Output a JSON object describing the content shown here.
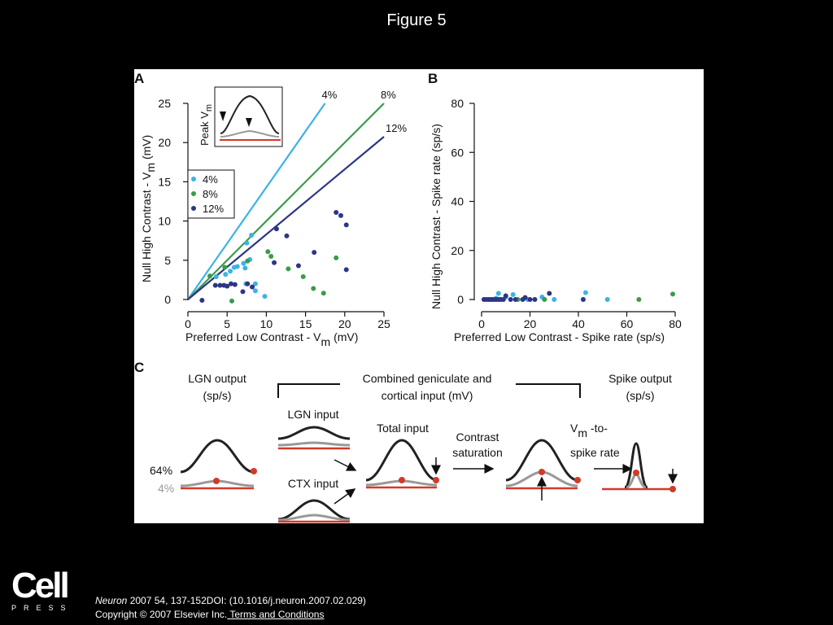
{
  "figure_title": "Figure 5",
  "logo": {
    "main": "Cell",
    "sub": "PRESS"
  },
  "citation": {
    "journal": "Neuron",
    "rest": " 2007 54, 137-152DOI: (10.1016/j.neuron.2007.02.029)"
  },
  "copyright": {
    "text": "Copyright © 2007 Elsevier Inc.",
    "link": " Terms and Conditions"
  },
  "colors": {
    "c4": "#3ab3e6",
    "c8": "#3a9b4a",
    "c12": "#2d3586",
    "red": "#d23a2a",
    "gray": "#999999",
    "dark": "#222222"
  },
  "panel_c": {
    "label": "C",
    "lgn_output": [
      "LGN output",
      "(sp/s)"
    ],
    "combined": [
      "Combined geniculate and",
      "cortical input (mV)"
    ],
    "spike_output": [
      "Spike output",
      "(sp/s)"
    ],
    "lgn_input": "LGN input",
    "ctx_input": "CTX input",
    "total_input": "Total input",
    "contrast_saturation": [
      "Contrast",
      "saturation"
    ],
    "vm_main": "V",
    "vm_sub": "m",
    "vm_tail": " -to-",
    "spike_rate": "spike rate",
    "pct_high": "64%",
    "pct_low": "4%"
  },
  "chart_data": [
    {
      "panel": "A",
      "type": "scatter",
      "xlabel": "Preferred Low Contrast - V",
      "xlabel_sub": "m",
      "xlabel_tail": " (mV)",
      "ylabel": "Null High Contrast - V",
      "ylabel_sub": "m",
      "ylabel_tail": " (mV)",
      "xlim": [
        0,
        25
      ],
      "ylim": [
        0,
        25
      ],
      "xticks": [
        0,
        5,
        10,
        15,
        20,
        25
      ],
      "yticks": [
        0,
        5,
        10,
        15,
        20,
        25
      ],
      "lines": [
        {
          "name": "4%",
          "slope": 1.43
        },
        {
          "name": "8%",
          "slope": 1.0
        },
        {
          "name": "12%",
          "slope": 0.83
        }
      ],
      "legend": {
        "position": "top-left",
        "entries": [
          "4%",
          "8%",
          "12%"
        ]
      },
      "inset": {
        "ylabel": "Peak V",
        "ylabel_sub": "m"
      },
      "series": [
        {
          "name": "4%",
          "points": [
            [
              3.6,
              2.9
            ],
            [
              4.8,
              3.2
            ],
            [
              5.4,
              3.6
            ],
            [
              5.9,
              4.1
            ],
            [
              6.3,
              4.2
            ],
            [
              7.1,
              4.6
            ],
            [
              7.5,
              7.2
            ],
            [
              8.1,
              8.2
            ],
            [
              7.4,
              2.0
            ],
            [
              8.6,
              2.0
            ],
            [
              8.6,
              1.1
            ],
            [
              9.8,
              0.4
            ],
            [
              7.9,
              5.1
            ],
            [
              7.3,
              4.0
            ]
          ]
        },
        {
          "name": "8%",
          "points": [
            [
              2.8,
              3.0
            ],
            [
              4.7,
              4.1
            ],
            [
              5.6,
              -0.2
            ],
            [
              7.6,
              4.9
            ],
            [
              10.2,
              6.1
            ],
            [
              10.6,
              5.5
            ],
            [
              12.8,
              3.9
            ],
            [
              14.7,
              2.9
            ],
            [
              16.0,
              1.4
            ],
            [
              17.3,
              0.8
            ],
            [
              18.9,
              5.3
            ]
          ]
        },
        {
          "name": "12%",
          "points": [
            [
              1.8,
              -0.1
            ],
            [
              3.5,
              1.8
            ],
            [
              4.1,
              1.8
            ],
            [
              4.6,
              1.8
            ],
            [
              5.0,
              1.7
            ],
            [
              5.5,
              2.0
            ],
            [
              6.0,
              1.9
            ],
            [
              7.0,
              1.0
            ],
            [
              7.6,
              2.0
            ],
            [
              8.2,
              1.6
            ],
            [
              11.3,
              9.0
            ],
            [
              12.6,
              8.1
            ],
            [
              14.1,
              4.3
            ],
            [
              16.1,
              6.0
            ],
            [
              18.9,
              11.1
            ],
            [
              19.5,
              10.7
            ],
            [
              20.2,
              9.5
            ],
            [
              20.2,
              3.8
            ],
            [
              11.0,
              4.7
            ]
          ]
        }
      ]
    },
    {
      "panel": "B",
      "type": "scatter",
      "xlabel": "Preferred Low Contrast - Spike rate (sp/s)",
      "ylabel": "Null High Contrast - Spike rate (sp/s)",
      "xlim": [
        0,
        80
      ],
      "ylim": [
        0,
        80
      ],
      "xticks": [
        0,
        20,
        40,
        60,
        80
      ],
      "yticks": [
        0,
        20,
        40,
        60,
        80
      ],
      "series": [
        {
          "name": "4%",
          "points": [
            [
              1,
              0
            ],
            [
              2,
              0
            ],
            [
              3,
              0
            ],
            [
              5,
              0
            ],
            [
              6,
              0.5
            ],
            [
              7,
              2.5
            ],
            [
              8,
              0
            ],
            [
              10,
              1
            ],
            [
              13,
              2
            ],
            [
              19,
              0
            ],
            [
              25,
              1
            ],
            [
              30,
              0
            ],
            [
              43,
              2.8
            ],
            [
              52,
              0
            ]
          ]
        },
        {
          "name": "8%",
          "points": [
            [
              4,
              0
            ],
            [
              7,
              0
            ],
            [
              15,
              0
            ],
            [
              26,
              0
            ],
            [
              65,
              0
            ],
            [
              79,
              2.2
            ]
          ]
        },
        {
          "name": "12%",
          "points": [
            [
              1,
              0
            ],
            [
              2,
              0
            ],
            [
              3,
              0
            ],
            [
              4,
              0
            ],
            [
              5,
              0
            ],
            [
              6,
              0
            ],
            [
              7,
              0
            ],
            [
              8,
              0
            ],
            [
              9,
              0
            ],
            [
              10,
              1.5
            ],
            [
              12,
              0
            ],
            [
              14,
              0
            ],
            [
              17,
              0
            ],
            [
              18,
              0.8
            ],
            [
              20,
              0
            ],
            [
              22,
              0
            ],
            [
              28,
              2.5
            ],
            [
              42,
              0
            ]
          ]
        }
      ]
    }
  ]
}
